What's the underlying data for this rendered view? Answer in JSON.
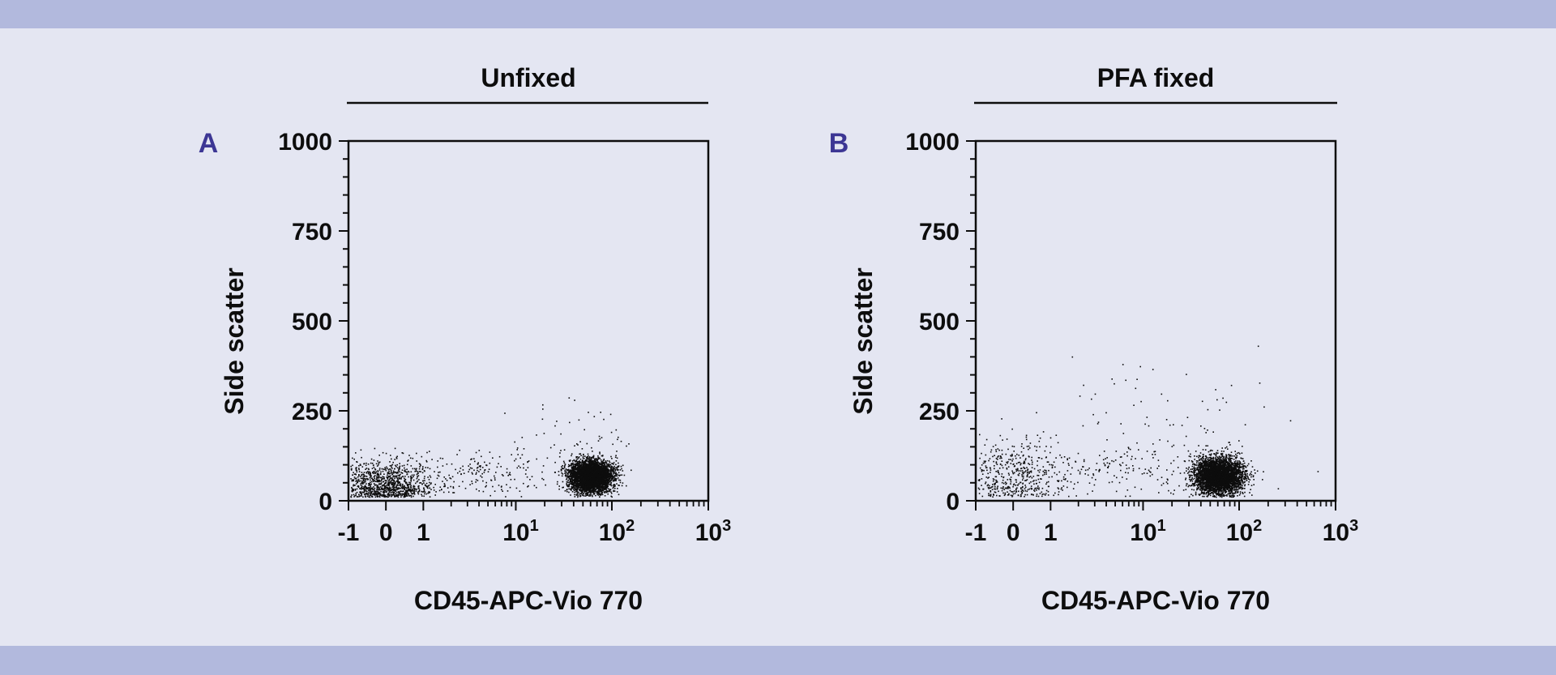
{
  "colors": {
    "background": "#e4e6f2",
    "band": "#b2b9dd",
    "panel_letter": "#3c3694",
    "ink": "#0d0d0d"
  },
  "chart_data": [
    {
      "type": "scatter",
      "panel": "A",
      "title": "Unfixed",
      "xlabel": "CD45-APC-Vio 770",
      "ylabel": "Side scatter",
      "x_scale": "biexponential (linear near 0, log10 above 10)",
      "xlim": [
        -1,
        1000
      ],
      "ylim": [
        0,
        1000
      ],
      "x_ticks": [
        "-1",
        "0",
        "1",
        "10^1",
        "10^2",
        "10^3"
      ],
      "y_ticks": [
        0,
        250,
        500,
        750,
        1000
      ],
      "grid": false,
      "legend": "none",
      "populations": [
        {
          "name": "",
          "x_center": 0,
          "y_center": 45,
          "x_spread_decades": 0.45,
          "y_spread": 35,
          "count": 1100
        },
        {
          "name": "",
          "x_center": 60,
          "y_center": 70,
          "x_spread_decades": 0.2,
          "y_spread": 22,
          "count": 4200
        },
        {
          "name": "",
          "x_center": 5,
          "y_center": 75,
          "x_spread_decades": 0.8,
          "y_spread": 35,
          "count": 180
        },
        {
          "name": "",
          "x_center": 40,
          "y_center": 150,
          "x_spread_decades": 0.6,
          "y_spread": 60,
          "count": 60
        }
      ]
    },
    {
      "type": "scatter",
      "panel": "B",
      "title": "PFA fixed",
      "xlabel": "CD45-APC-Vio 770",
      "ylabel": "Side scatter",
      "x_scale": "biexponential (linear near 0, log10 above 10)",
      "xlim": [
        -1,
        1000
      ],
      "ylim": [
        0,
        1000
      ],
      "x_ticks": [
        "-1",
        "0",
        "1",
        "10^1",
        "10^2",
        "10^3"
      ],
      "y_ticks": [
        0,
        250,
        500,
        750,
        1000
      ],
      "grid": false,
      "legend": "none",
      "populations": [
        {
          "name": "",
          "x_center": 0,
          "y_center": 70,
          "x_spread_decades": 0.5,
          "y_spread": 50,
          "count": 520
        },
        {
          "name": "",
          "x_center": 60,
          "y_center": 70,
          "x_spread_decades": 0.22,
          "y_spread": 25,
          "count": 3800
        },
        {
          "name": "",
          "x_center": 8,
          "y_center": 90,
          "x_spread_decades": 0.9,
          "y_spread": 45,
          "count": 180
        },
        {
          "name": "",
          "x_center": 20,
          "y_center": 250,
          "x_spread_decades": 1.2,
          "y_spread": 70,
          "count": 55
        }
      ]
    }
  ]
}
